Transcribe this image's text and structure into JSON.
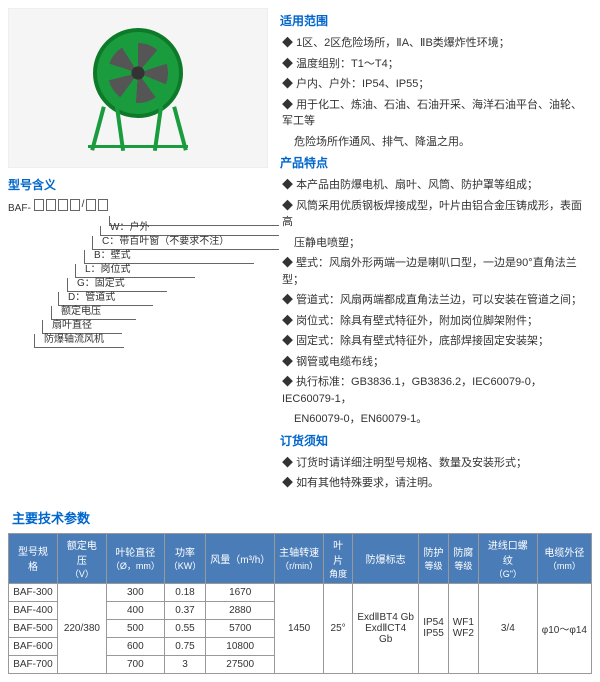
{
  "sections": {
    "scope": {
      "title": "适用范围",
      "items": [
        "1区、2区危险场所，ⅡA、ⅡB类爆炸性环境；",
        "温度组别：T1～T4；",
        "户内、户外：IP54、IP55；",
        "用于化工、炼油、石油、石油开采、海洋石油平台、油轮、军工等"
      ],
      "sub": "危险场所作通风、排气、降温之用。"
    },
    "features": {
      "title": "产品特点",
      "items": [
        "本产品由防爆电机、扇叶、风筒、防护罩等组成；",
        "风筒采用优质钢板焊接成型，叶片由铝合金压铸成形，表面高",
        "壁式：风扇外形两端一边是喇叭口型，一边是90°直角法兰型；",
        "管道式：风扇两端都成直角法兰边，可以安装在管道之间；",
        "岗位式：除具有壁式特征外，附加岗位脚架附件；",
        "固定式：除具有壁式特征外，底部焊接固定安装架；",
        "钢管或电缆布线；",
        "执行标准：GB3836.1，GB3836.2，IEC60079-0，IEC60079-1，"
      ],
      "sub1": "压静电喷塑；",
      "sub2": "EN60079-0，EN60079-1。"
    },
    "order": {
      "title": "订货须知",
      "items": [
        "订货时请详细注明型号规格、数量及安装形式；",
        "如有其他特殊要求，请注明。"
      ]
    },
    "model": {
      "title": "型号含义",
      "prefix": "BAF-",
      "lines": [
        "W：户外",
        "C：带百叶窗（不要求不注）",
        "B：壁式",
        "L：岗位式",
        "G：固定式",
        "D：管道式",
        "额定电压",
        "扇叶直径",
        "防爆轴流风机"
      ]
    },
    "tech": {
      "title": "主要技术参数"
    }
  },
  "table": {
    "headers": {
      "model": "型号规格",
      "voltage": "额定电压",
      "voltage_unit": "（V）",
      "diameter": "叶轮直径",
      "diameter_unit": "（Ø，mm）",
      "power": "功率",
      "power_unit": "（KW）",
      "airflow": "风量（m³/h）",
      "speed": "主轴转速",
      "speed_unit": "（r/min）",
      "angle": "叶片",
      "angle_sub": "角度",
      "explosion": "防爆标志",
      "protection": "防护",
      "protection_sub": "等级",
      "corrosion": "防腐",
      "corrosion_sub": "等级",
      "thread": "进线口螺纹",
      "thread_unit": "（G\"）",
      "cable": "电缆外径",
      "cable_unit": "（mm）"
    },
    "rows": [
      {
        "model": "BAF-300",
        "diameter": "300",
        "power": "0.18",
        "airflow": "1670"
      },
      {
        "model": "BAF-400",
        "diameter": "400",
        "power": "0.37",
        "airflow": "2880"
      },
      {
        "model": "BAF-500",
        "diameter": "500",
        "power": "0.55",
        "airflow": "5700"
      },
      {
        "model": "BAF-600",
        "diameter": "600",
        "power": "0.75",
        "airflow": "10800"
      },
      {
        "model": "BAF-700",
        "diameter": "700",
        "power": "3",
        "airflow": "27500"
      }
    ],
    "spans": {
      "voltage": "220/380",
      "speed": "1450",
      "angle": "25°",
      "explosion1": "ExdⅡBT4 Gb",
      "explosion2": "ExdⅡCT4 Gb",
      "protection1": "IP54",
      "protection2": "IP55",
      "corrosion1": "WF1",
      "corrosion2": "WF2",
      "thread": "3/4",
      "cable": "φ10～φ14"
    }
  }
}
